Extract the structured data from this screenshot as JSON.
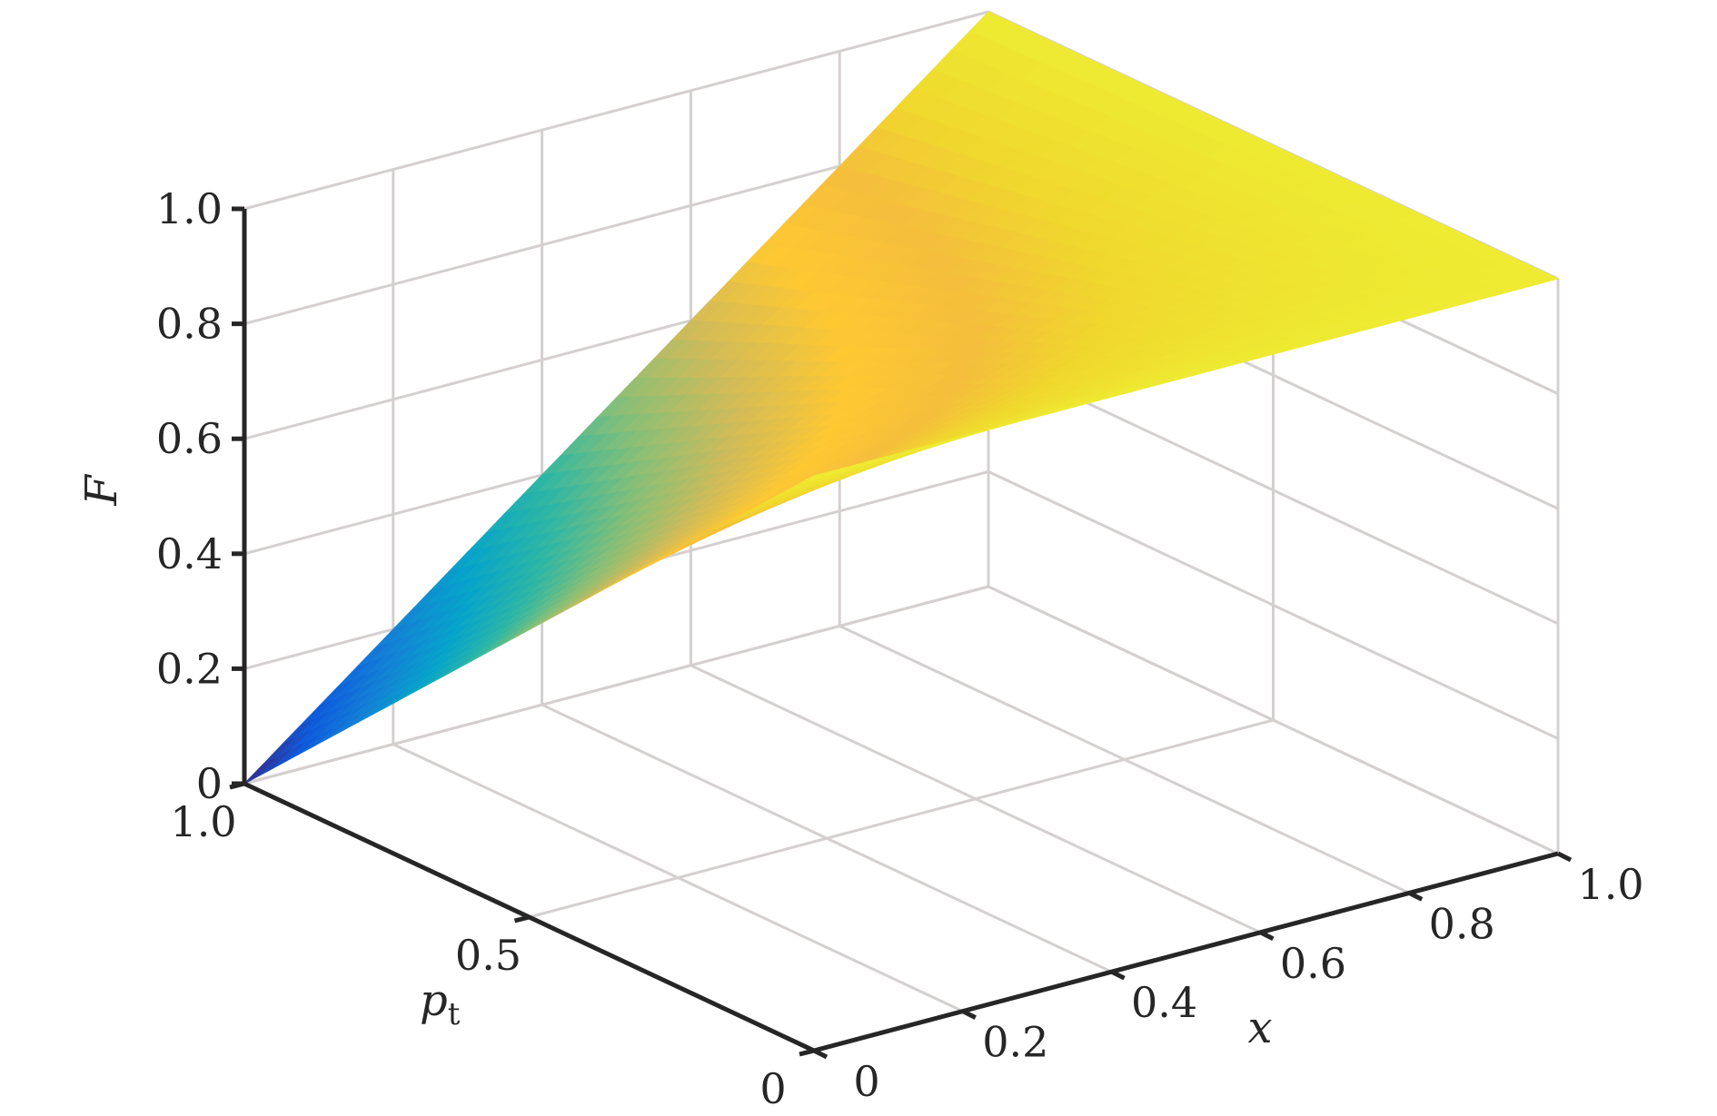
{
  "chart_data": {
    "type": "surface",
    "x": [
      0,
      0.5,
      1.0
    ],
    "pt": [
      0,
      0.5,
      1.0
    ],
    "F": [
      [
        1.0,
        1.0,
        1.0
      ],
      [
        0.5,
        0.75,
        1.0
      ],
      [
        0.0,
        0.5,
        1.0
      ]
    ],
    "colormap": "parula",
    "xlabel": "x",
    "ptlabel": {
      "base": "p",
      "sub": "t"
    },
    "zlabel": "F",
    "xlim": [
      0,
      1
    ],
    "ptlim": [
      0,
      1
    ],
    "zlim": [
      0,
      1
    ],
    "x_ticks": [
      "0",
      "0.2",
      "0.4",
      "0.6",
      "0.8",
      "1.0"
    ],
    "pt_ticks": [
      "0",
      "0.5",
      "1.0"
    ],
    "z_ticks": [
      "0",
      "0.2",
      "0.4",
      "0.6",
      "0.8",
      "1.0"
    ],
    "grid": true
  }
}
